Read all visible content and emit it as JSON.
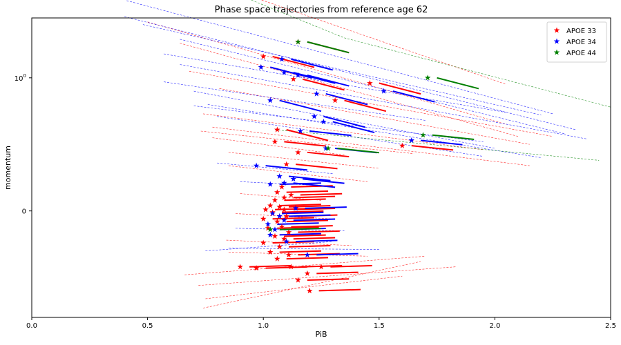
{
  "chart_data": {
    "type": "scatter",
    "title": "Phase space trajectories from reference age 62",
    "xlabel": "PiB",
    "ylabel": "momentum",
    "xlim": [
      0.0,
      2.5
    ],
    "ylim": [
      -0.8,
      1.45
    ],
    "yscale": "symlog",
    "x_ticks": [
      0.0,
      0.5,
      1.0,
      1.5,
      2.0,
      2.5
    ],
    "x_tick_labels": [
      "0.0",
      "0.5",
      "1.0",
      "1.5",
      "2.0",
      "2.5"
    ],
    "y_ticks": [
      0,
      1
    ],
    "y_tick_labels": [
      "0",
      "10^0"
    ],
    "grid": false,
    "legend_position": "top-right",
    "series": [
      {
        "name": "APOE 33",
        "color": "#ff0000",
        "points": [
          [
            1.15,
            1.27
          ],
          [
            1.0,
            1.16
          ],
          [
            1.13,
            0.99
          ],
          [
            1.31,
            0.83
          ],
          [
            1.46,
            0.96
          ],
          [
            1.06,
            0.61
          ],
          [
            1.05,
            0.52
          ],
          [
            1.15,
            0.44
          ],
          [
            1.6,
            0.49
          ],
          [
            1.1,
            0.35
          ],
          [
            1.08,
            0.18
          ],
          [
            1.06,
            0.14
          ],
          [
            1.05,
            0.08
          ],
          [
            1.09,
            0.1
          ],
          [
            1.12,
            0.12
          ],
          [
            1.03,
            0.04
          ],
          [
            1.01,
            0.01
          ],
          [
            1.07,
            0.03
          ],
          [
            1.09,
            0.01
          ],
          [
            1.04,
            -0.01
          ],
          [
            1.1,
            -0.04
          ],
          [
            1.0,
            -0.06
          ],
          [
            1.06,
            -0.08
          ],
          [
            1.08,
            -0.12
          ],
          [
            1.02,
            -0.13
          ],
          [
            1.11,
            -0.16
          ],
          [
            1.05,
            -0.19
          ],
          [
            1.09,
            -0.21
          ],
          [
            1.0,
            -0.24
          ],
          [
            1.07,
            -0.27
          ],
          [
            1.03,
            -0.31
          ],
          [
            1.11,
            -0.33
          ],
          [
            1.06,
            -0.36
          ],
          [
            0.9,
            -0.42
          ],
          [
            0.97,
            -0.43
          ],
          [
            1.12,
            -0.42
          ],
          [
            1.25,
            -0.42
          ],
          [
            1.19,
            -0.47
          ],
          [
            1.15,
            -0.52
          ],
          [
            1.2,
            -0.6
          ]
        ],
        "trajectories": [
          [
            [
              0.34,
              1.82
            ],
            [
              0.7,
              1.76
            ],
            [
              2.05,
              0.95
            ]
          ],
          [
            [
              0.5,
              1.42
            ],
            [
              2.05,
              0.65
            ]
          ],
          [
            [
              0.64,
              1.26
            ],
            [
              2.1,
              0.56
            ]
          ],
          [
            [
              0.68,
              1.05
            ],
            [
              2.25,
              0.56
            ]
          ],
          [
            [
              0.81,
              0.92
            ],
            [
              2.15,
              0.5
            ]
          ],
          [
            [
              0.74,
              0.73
            ],
            [
              1.95,
              0.46
            ]
          ],
          [
            [
              0.78,
              0.63
            ],
            [
              2.15,
              0.34
            ]
          ],
          [
            [
              0.73,
              0.6
            ],
            [
              1.65,
              0.43
            ]
          ],
          [
            [
              0.85,
              0.44
            ],
            [
              1.5,
              0.32
            ]
          ],
          [
            [
              0.78,
              0.55
            ],
            [
              1.35,
              0.42
            ]
          ],
          [
            [
              0.85,
              0.34
            ],
            [
              1.45,
              0.22
            ]
          ],
          [
            [
              0.9,
              0.13
            ],
            [
              1.25,
              0.08
            ]
          ],
          [
            [
              0.88,
              -0.02
            ],
            [
              1.3,
              -0.06
            ]
          ],
          [
            [
              0.84,
              -0.22
            ],
            [
              1.38,
              -0.26
            ]
          ],
          [
            [
              0.85,
              -0.31
            ],
            [
              1.45,
              -0.34
            ]
          ],
          [
            [
              0.66,
              -0.48
            ],
            [
              1.7,
              -0.34
            ]
          ],
          [
            [
              0.72,
              -0.56
            ],
            [
              1.83,
              -0.42
            ]
          ],
          [
            [
              0.74,
              -0.73
            ],
            [
              1.68,
              -0.38
            ]
          ],
          [
            [
              0.75,
              -0.66
            ],
            [
              1.6,
              -0.49
            ]
          ]
        ]
      },
      {
        "name": "APOE 34",
        "color": "#0000ff",
        "points": [
          [
            0.99,
            1.08
          ],
          [
            1.08,
            1.14
          ],
          [
            1.09,
            1.04
          ],
          [
            1.15,
            1.02
          ],
          [
            1.52,
            0.9
          ],
          [
            1.23,
            0.88
          ],
          [
            1.03,
            0.83
          ],
          [
            1.22,
            0.71
          ],
          [
            1.26,
            0.67
          ],
          [
            1.16,
            0.6
          ],
          [
            1.64,
            0.53
          ],
          [
            1.27,
            0.47
          ],
          [
            0.97,
            0.34
          ],
          [
            1.07,
            0.26
          ],
          [
            1.03,
            0.2
          ],
          [
            1.09,
            0.21
          ],
          [
            1.13,
            0.24
          ],
          [
            1.14,
            0.02
          ],
          [
            1.04,
            -0.02
          ],
          [
            1.07,
            -0.04
          ],
          [
            1.02,
            -0.1
          ],
          [
            1.05,
            -0.14
          ],
          [
            1.09,
            -0.07
          ],
          [
            1.03,
            -0.18
          ],
          [
            1.1,
            -0.23
          ],
          [
            1.19,
            -0.33
          ]
        ],
        "trajectories": [
          [
            [
              0.41,
              1.58
            ],
            [
              2.25,
              0.73
            ]
          ],
          [
            [
              0.4,
              1.46
            ],
            [
              2.35,
              0.61
            ]
          ],
          [
            [
              0.48,
              1.4
            ],
            [
              2.2,
              0.72
            ]
          ],
          [
            [
              0.64,
              1.29
            ],
            [
              2.3,
              0.58
            ]
          ],
          [
            [
              0.57,
              1.18
            ],
            [
              2.05,
              0.74
            ]
          ],
          [
            [
              0.64,
              1.1
            ],
            [
              2.4,
              0.54
            ]
          ],
          [
            [
              0.57,
              0.97
            ],
            [
              1.7,
              0.68
            ]
          ],
          [
            [
              0.7,
              0.79
            ],
            [
              1.95,
              0.52
            ]
          ],
          [
            [
              0.7,
              0.9
            ],
            [
              2.0,
              0.47
            ]
          ],
          [
            [
              0.76,
              0.8
            ],
            [
              2.2,
              0.4
            ]
          ],
          [
            [
              0.8,
              0.71
            ],
            [
              1.95,
              0.41
            ]
          ],
          [
            [
              0.8,
              0.36
            ],
            [
              1.3,
              0.28
            ]
          ],
          [
            [
              0.9,
              0.22
            ],
            [
              1.25,
              0.19
            ]
          ],
          [
            [
              0.88,
              -0.13
            ],
            [
              1.35,
              -0.15
            ]
          ],
          [
            [
              0.85,
              -0.28
            ],
            [
              1.5,
              -0.29
            ]
          ],
          [
            [
              0.75,
              -0.3
            ],
            [
              1.3,
              -0.23
            ]
          ]
        ]
      },
      {
        "name": "APOE 44",
        "color": "#008000",
        "points": [
          [
            1.15,
            1.27
          ],
          [
            1.71,
            1.0
          ],
          [
            1.69,
            0.57
          ],
          [
            1.28,
            0.47
          ],
          [
            1.03,
            -0.14
          ]
        ],
        "trajectories": [
          [
            [
              0.7,
              1.76
            ],
            [
              1.35,
              1.3
            ],
            [
              2.5,
              0.78
            ]
          ],
          [
            [
              1.05,
              0.61
            ],
            [
              2.45,
              0.38
            ]
          ]
        ]
      }
    ]
  }
}
